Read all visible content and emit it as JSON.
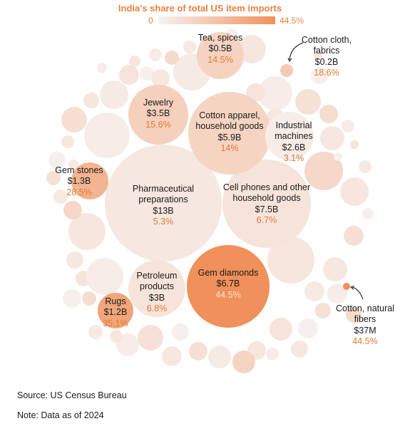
{
  "chart_data": {
    "type": "bubble",
    "title": "India's share of total US item imports",
    "color_scale": {
      "min_label": "0",
      "max_label": "44.5%",
      "min": 0,
      "max": 44.5,
      "low_color": "#f7f3f2",
      "high_color": "#f0905a"
    },
    "items": [
      {
        "name": "Pharmaceutical preparations",
        "value_label": "$13B",
        "value_b": 13,
        "share_label": "5.3%",
        "share": 5.3
      },
      {
        "name": "Cell phones and other household goods",
        "value_label": "$7.5B",
        "value_b": 7.5,
        "share_label": "6.7%",
        "share": 6.7
      },
      {
        "name": "Gem diamonds",
        "value_label": "$6.7B",
        "value_b": 6.7,
        "share_label": "44.5%",
        "share": 44.5
      },
      {
        "name": "Cotton apparel, household goods",
        "value_label": "$5.9B",
        "value_b": 5.9,
        "share_label": "14%",
        "share": 14
      },
      {
        "name": "Jewelry",
        "value_label": "$3.5B",
        "value_b": 3.5,
        "share_label": "15.6%",
        "share": 15.6
      },
      {
        "name": "Petroleum products",
        "value_label": "$3B",
        "value_b": 3,
        "share_label": "6.8%",
        "share": 6.8
      },
      {
        "name": "Industrial machines",
        "value_label": "$2.6B",
        "value_b": 2.6,
        "share_label": "3.1%",
        "share": 3.1
      },
      {
        "name": "Gem stones",
        "value_label": "$1.3B",
        "value_b": 1.3,
        "share_label": "28.5%",
        "share": 28.5
      },
      {
        "name": "Rugs",
        "value_label": "$1.2B",
        "value_b": 1.2,
        "share_label": "35.1%",
        "share": 35.1
      },
      {
        "name": "Tea, spices",
        "value_label": "$0.5B",
        "value_b": 0.5,
        "share_label": "14.5%",
        "share": 14.5
      },
      {
        "name": "Cotton cloth, fabrics",
        "value_label": "$0.2B",
        "value_b": 0.2,
        "share_label": "18.6%",
        "share": 18.6
      },
      {
        "name": "Cotton, natural fibers",
        "value_label": "$37M",
        "value_b": 0.037,
        "share_label": "44.5%",
        "share": 44.5
      }
    ],
    "unlabeled_bubble_shares": [
      4,
      6,
      3,
      8,
      2,
      10,
      5,
      3,
      7,
      12,
      4,
      6,
      2,
      9,
      5,
      3,
      11,
      6,
      4,
      8,
      2,
      5,
      7,
      3,
      6,
      14,
      4,
      9,
      2,
      5,
      8,
      3,
      6,
      4,
      10,
      2,
      7,
      5,
      3,
      6,
      12,
      4,
      8,
      2,
      5,
      9,
      3,
      6,
      4,
      7,
      2,
      5,
      11,
      3,
      6,
      4,
      8,
      2,
      5,
      7,
      3,
      4,
      6,
      2
    ]
  },
  "footer": {
    "source": "Source: US Census Bureau",
    "note": "Note: Data as of 2024"
  }
}
